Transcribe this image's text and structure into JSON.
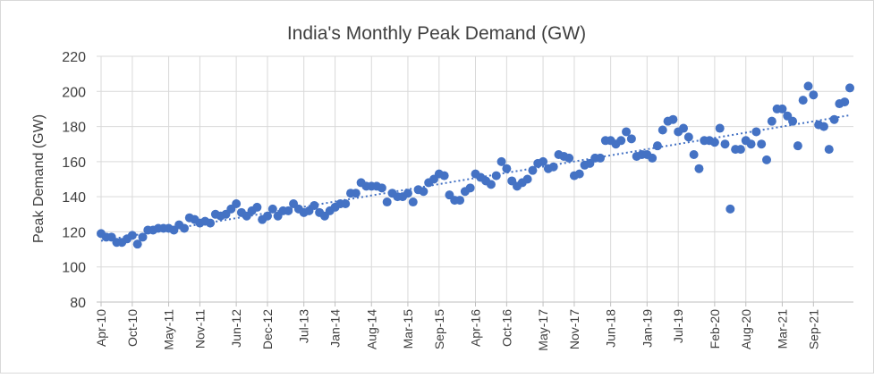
{
  "chart_data": {
    "type": "scatter",
    "title": "India's Monthly Peak Demand (GW)",
    "y_label": "Peak Demand (GW)",
    "categories": [
      "Apr-10",
      null,
      null,
      null,
      null,
      null,
      "Oct-10",
      null,
      null,
      null,
      null,
      null,
      null,
      "May-11",
      null,
      null,
      null,
      null,
      null,
      "Nov-11",
      null,
      null,
      null,
      null,
      null,
      null,
      "Jun-12",
      null,
      null,
      null,
      null,
      null,
      "Dec-12",
      null,
      null,
      null,
      null,
      null,
      null,
      "Jul-13",
      null,
      null,
      null,
      null,
      null,
      "Jan-14",
      null,
      null,
      null,
      null,
      null,
      null,
      "Aug-14",
      null,
      null,
      null,
      null,
      null,
      null,
      "Mar-15",
      null,
      null,
      null,
      null,
      null,
      "Sep-15",
      null,
      null,
      null,
      null,
      null,
      null,
      "Apr-16",
      null,
      null,
      null,
      null,
      null,
      "Oct-16",
      null,
      null,
      null,
      null,
      null,
      null,
      "May-17",
      null,
      null,
      null,
      null,
      null,
      "Nov-17",
      null,
      null,
      null,
      null,
      null,
      null,
      "Jun-18",
      null,
      null,
      null,
      null,
      null,
      null,
      "Jan-19",
      null,
      null,
      null,
      null,
      null,
      "Jul-19",
      null,
      null,
      null,
      null,
      null,
      null,
      "Feb-20",
      null,
      null,
      null,
      null,
      null,
      "Aug-20",
      null,
      null,
      null,
      null,
      null,
      null,
      "Mar-21",
      null,
      null,
      null,
      null,
      null,
      "Sep-21",
      null,
      null,
      null,
      null,
      null,
      null,
      null
    ],
    "values": [
      119,
      117,
      117,
      114,
      114,
      116,
      118,
      113,
      117,
      121,
      121,
      122,
      122,
      122,
      121,
      124,
      122,
      128,
      127,
      125,
      126,
      125,
      130,
      129,
      130,
      133,
      136,
      131,
      129,
      132,
      134,
      127,
      129,
      133,
      129,
      132,
      132,
      136,
      133,
      131,
      132,
      135,
      131,
      129,
      132,
      134,
      136,
      136,
      142,
      142,
      148,
      146,
      146,
      146,
      145,
      137,
      142,
      140,
      140,
      142,
      137,
      144,
      143,
      148,
      150,
      153,
      152,
      141,
      138,
      138,
      143,
      145,
      153,
      151,
      149,
      147,
      152,
      160,
      156,
      149,
      146,
      148,
      150,
      155,
      159,
      160,
      156,
      157,
      164,
      163,
      162,
      152,
      153,
      158,
      159,
      162,
      162,
      172,
      172,
      170,
      172,
      177,
      173,
      163,
      164,
      164,
      162,
      169,
      178,
      183,
      184,
      177,
      179,
      174,
      164,
      156,
      172,
      172,
      171,
      179,
      170,
      133,
      167,
      167,
      172,
      170,
      177,
      170,
      161,
      183,
      190,
      190,
      186,
      183,
      169,
      195,
      203,
      198,
      181,
      180,
      167,
      184,
      193,
      194,
      202
    ],
    "color": "#4472c4",
    "trendline": true,
    "grid": true,
    "ylim": [
      80,
      220
    ],
    "yticks": [
      80,
      100,
      120,
      140,
      160,
      180,
      200,
      220
    ]
  }
}
